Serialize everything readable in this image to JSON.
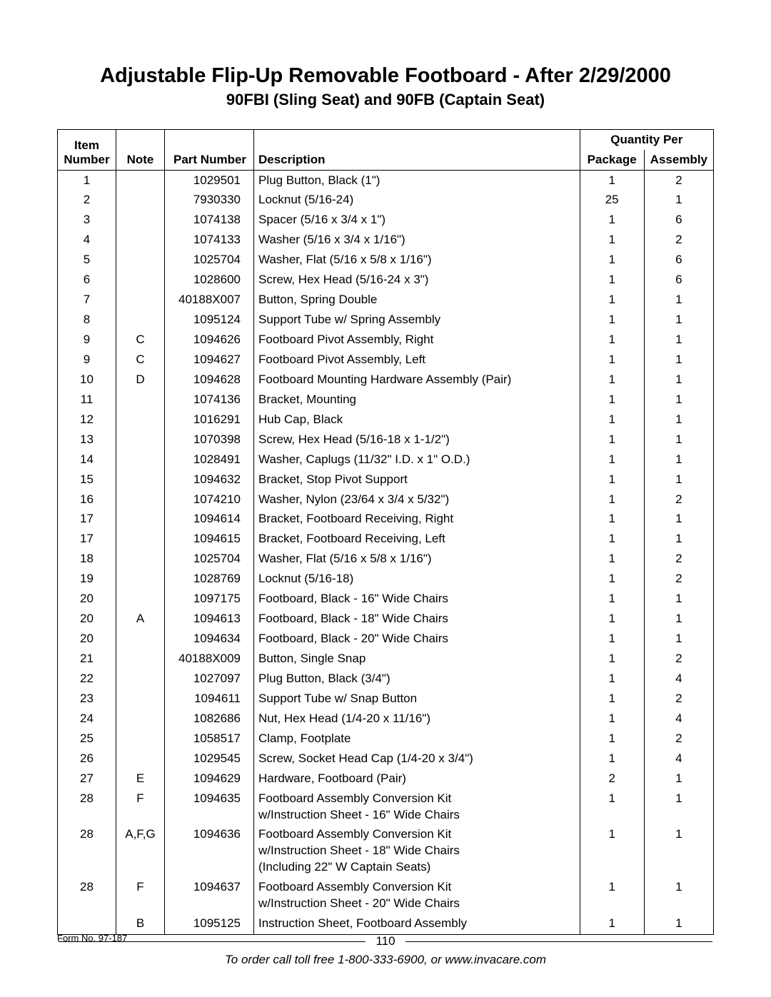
{
  "title": "Adjustable Flip-Up Removable Footboard - After 2/29/2000",
  "subtitle": "90FBI (Sling Seat) and 90FB (Captain Seat)",
  "headers": {
    "item1": "Item",
    "item2": "Number",
    "note": "Note",
    "part": "Part Number",
    "desc": "Description",
    "qty": "Quantity Per",
    "pkg": "Package",
    "asm": "Assembly"
  },
  "rows": [
    {
      "item": "1",
      "note": "",
      "part": "1029501",
      "desc": "Plug Button, Black (1\")",
      "pkg": "1",
      "asm": "2"
    },
    {
      "item": "2",
      "note": "",
      "part": "7930330",
      "desc": "Locknut (5/16-24)",
      "pkg": "25",
      "asm": "1"
    },
    {
      "item": "3",
      "note": "",
      "part": "1074138",
      "desc": "Spacer (5/16 x 3/4 x 1\")",
      "pkg": "1",
      "asm": "6"
    },
    {
      "item": "4",
      "note": "",
      "part": "1074133",
      "desc": "Washer (5/16 x 3/4 x 1/16\")",
      "pkg": "1",
      "asm": "2"
    },
    {
      "item": "5",
      "note": "",
      "part": "1025704",
      "desc": "Washer, Flat (5/16 x 5/8 x 1/16\")",
      "pkg": "1",
      "asm": "6"
    },
    {
      "item": "6",
      "note": "",
      "part": "1028600",
      "desc": "Screw, Hex Head (5/16-24 x 3\")",
      "pkg": "1",
      "asm": "6"
    },
    {
      "item": "7",
      "note": "",
      "part": "40188X007",
      "desc": "Button, Spring Double",
      "pkg": "1",
      "asm": "1"
    },
    {
      "item": "8",
      "note": "",
      "part": "1095124",
      "desc": "Support Tube w/ Spring Assembly",
      "pkg": "1",
      "asm": "1"
    },
    {
      "item": "9",
      "note": "C",
      "part": "1094626",
      "desc": "Footboard Pivot Assembly, Right",
      "pkg": "1",
      "asm": "1"
    },
    {
      "item": "9",
      "note": "C",
      "part": "1094627",
      "desc": "Footboard Pivot Assembly, Left",
      "pkg": "1",
      "asm": "1"
    },
    {
      "item": "10",
      "note": "D",
      "part": "1094628",
      "desc": "Footboard Mounting Hardware Assembly (Pair)",
      "pkg": "1",
      "asm": "1"
    },
    {
      "item": "11",
      "note": "",
      "part": "1074136",
      "desc": "Bracket, Mounting",
      "pkg": "1",
      "asm": "1"
    },
    {
      "item": "12",
      "note": "",
      "part": "1016291",
      "desc": "Hub Cap, Black",
      "pkg": "1",
      "asm": "1"
    },
    {
      "item": "13",
      "note": "",
      "part": "1070398",
      "desc": "Screw, Hex Head (5/16-18 x 1-1/2\")",
      "pkg": "1",
      "asm": "1"
    },
    {
      "item": "14",
      "note": "",
      "part": "1028491",
      "desc": "Washer, Caplugs (11/32\" I.D. x 1\" O.D.)",
      "pkg": "1",
      "asm": "1"
    },
    {
      "item": "15",
      "note": "",
      "part": "1094632",
      "desc": "Bracket, Stop Pivot Support",
      "pkg": "1",
      "asm": "1"
    },
    {
      "item": "16",
      "note": "",
      "part": "1074210",
      "desc": "Washer, Nylon (23/64 x 3/4 x 5/32\")",
      "pkg": "1",
      "asm": "2"
    },
    {
      "item": "17",
      "note": "",
      "part": "1094614",
      "desc": "Bracket, Footboard Receiving, Right",
      "pkg": "1",
      "asm": "1"
    },
    {
      "item": "17",
      "note": "",
      "part": "1094615",
      "desc": "Bracket, Footboard Receiving, Left",
      "pkg": "1",
      "asm": "1"
    },
    {
      "item": "18",
      "note": "",
      "part": "1025704",
      "desc": "Washer, Flat (5/16 x 5/8 x 1/16\")",
      "pkg": "1",
      "asm": "2"
    },
    {
      "item": "19",
      "note": "",
      "part": "1028769",
      "desc": "Locknut (5/16-18)",
      "pkg": "1",
      "asm": "2"
    },
    {
      "item": "20",
      "note": "",
      "part": "1097175",
      "desc": "Footboard, Black - 16\" Wide Chairs",
      "pkg": "1",
      "asm": "1"
    },
    {
      "item": "20",
      "note": "A",
      "part": "1094613",
      "desc": "Footboard, Black - 18\" Wide Chairs",
      "pkg": "1",
      "asm": "1"
    },
    {
      "item": "20",
      "note": "",
      "part": "1094634",
      "desc": "Footboard, Black - 20\" Wide Chairs",
      "pkg": "1",
      "asm": "1"
    },
    {
      "item": "21",
      "note": "",
      "part": "40188X009",
      "desc": "Button, Single Snap",
      "pkg": "1",
      "asm": "2"
    },
    {
      "item": "22",
      "note": "",
      "part": "1027097",
      "desc": "Plug Button, Black (3/4\")",
      "pkg": "1",
      "asm": "4"
    },
    {
      "item": "23",
      "note": "",
      "part": "1094611",
      "desc": "Support Tube w/ Snap Button",
      "pkg": "1",
      "asm": "2"
    },
    {
      "item": "24",
      "note": "",
      "part": "1082686",
      "desc": "Nut, Hex Head (1/4-20 x 11/16\")",
      "pkg": "1",
      "asm": "4"
    },
    {
      "item": "25",
      "note": "",
      "part": "1058517",
      "desc": "Clamp, Footplate",
      "pkg": "1",
      "asm": "2"
    },
    {
      "item": "26",
      "note": "",
      "part": "1029545",
      "desc": "Screw, Socket Head Cap (1/4-20 x 3/4\")",
      "pkg": "1",
      "asm": "4"
    },
    {
      "item": "27",
      "note": "E",
      "part": "1094629",
      "desc": "Hardware, Footboard (Pair)",
      "pkg": "2",
      "asm": "1"
    },
    {
      "item": "28",
      "note": "F",
      "part": "1094635",
      "desc": "Footboard Assembly Conversion Kit\nw/Instruction Sheet - 16\" Wide Chairs",
      "pkg": "1",
      "asm": "1"
    },
    {
      "item": "28",
      "note": "A,F,G",
      "part": "1094636",
      "desc": "Footboard Assembly Conversion Kit\nw/Instruction Sheet - 18\" Wide Chairs\n(Including 22\" W Captain Seats)",
      "pkg": "1",
      "asm": "1"
    },
    {
      "item": "28",
      "note": "F",
      "part": "1094637",
      "desc": "Footboard Assembly Conversion Kit\nw/Instruction Sheet - 20\" Wide Chairs",
      "pkg": "1",
      "asm": "1"
    },
    {
      "item": "",
      "note": "B",
      "part": "1095125",
      "desc": "Instruction Sheet, Footboard Assembly",
      "pkg": "1",
      "asm": "1"
    }
  ],
  "footer": {
    "page": "110",
    "form": "Form No. 97-187",
    "order": "To order call toll free 1-800-333-6900, or www.invacare.com"
  }
}
